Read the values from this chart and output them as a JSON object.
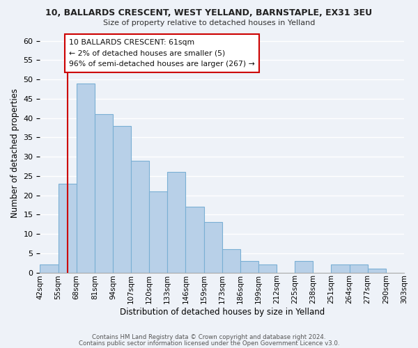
{
  "title": "10, BALLARDS CRESCENT, WEST YELLAND, BARNSTAPLE, EX31 3EU",
  "subtitle": "Size of property relative to detached houses in Yelland",
  "xlabel": "Distribution of detached houses by size in Yelland",
  "ylabel": "Number of detached properties",
  "footer_line1": "Contains HM Land Registry data © Crown copyright and database right 2024.",
  "footer_line2": "Contains public sector information licensed under the Open Government Licence v3.0.",
  "bin_edges": [
    0,
    1,
    2,
    3,
    4,
    5,
    6,
    7,
    8,
    9,
    10,
    11,
    12,
    13,
    14,
    15,
    16,
    17,
    18,
    19,
    20
  ],
  "bin_labels": [
    "42sqm",
    "55sqm",
    "68sqm",
    "81sqm",
    "94sqm",
    "107sqm",
    "120sqm",
    "133sqm",
    "146sqm",
    "159sqm",
    "173sqm",
    "186sqm",
    "199sqm",
    "212sqm",
    "225sqm",
    "238sqm",
    "251sqm",
    "264sqm",
    "277sqm",
    "290sqm",
    "303sqm"
  ],
  "bar_values": [
    2,
    23,
    49,
    41,
    38,
    29,
    21,
    26,
    17,
    13,
    6,
    3,
    2,
    0,
    3,
    0,
    2,
    2,
    1,
    0
  ],
  "bar_color": "#b8d0e8",
  "bar_edge_color": "#7aafd4",
  "property_line_x": 1.5,
  "property_line_color": "#cc0000",
  "ylim": [
    0,
    62
  ],
  "yticks": [
    0,
    5,
    10,
    15,
    20,
    25,
    30,
    35,
    40,
    45,
    50,
    55,
    60
  ],
  "annotation_text": "10 BALLARDS CRESCENT: 61sqm\n← 2% of detached houses are smaller (5)\n96% of semi-detached houses are larger (267) →",
  "annotation_box_color": "#ffffff",
  "annotation_border_color": "#cc0000",
  "background_color": "#eef2f8"
}
